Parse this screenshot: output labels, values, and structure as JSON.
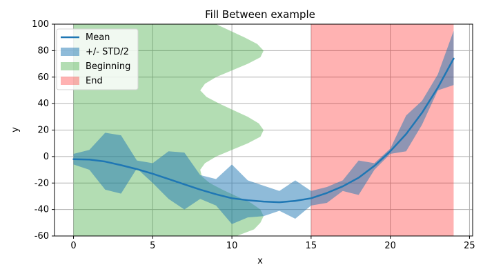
{
  "chart_data": {
    "type": "line",
    "title": "Fill Between example",
    "xlabel": "x",
    "ylabel": "y",
    "xlim": [
      -1.2,
      25.2
    ],
    "ylim": [
      -60,
      100
    ],
    "xticks": [
      0,
      5,
      10,
      15,
      20,
      25
    ],
    "yticks": [
      -60,
      -40,
      -20,
      0,
      20,
      40,
      60,
      80,
      100
    ],
    "grid": true,
    "legend_position": "upper-left",
    "series": [
      {
        "name": "Mean",
        "kind": "line",
        "color": "#1f77b4",
        "x": [
          0,
          1,
          2,
          3,
          4,
          5,
          6,
          7,
          8,
          9,
          10,
          11,
          12,
          13,
          14,
          15,
          16,
          17,
          18,
          19,
          20,
          21,
          22,
          23,
          24
        ],
        "y": [
          -2,
          -2.3,
          -3.8,
          -6.5,
          -9.5,
          -13,
          -17,
          -21,
          -25,
          -28.5,
          -31.5,
          -33,
          -34,
          -34.5,
          -33.5,
          -31.5,
          -27.5,
          -22.5,
          -16,
          -7,
          4,
          17,
          33,
          52,
          74
        ]
      },
      {
        "name": "+/- STD/2",
        "kind": "band",
        "color": "#1f77b4",
        "x": [
          0,
          1,
          2,
          3,
          4,
          5,
          6,
          7,
          8,
          9,
          10,
          11,
          12,
          13,
          14,
          15,
          16,
          17,
          18,
          19,
          20,
          21,
          22,
          23,
          24
        ],
        "upper": [
          2,
          5,
          18,
          16,
          -3,
          -5,
          4,
          3,
          -14,
          -17,
          -6,
          -18,
          -22,
          -26,
          -18,
          -26,
          -23,
          -18,
          -3,
          -5,
          6,
          31,
          42,
          62,
          95
        ],
        "lower": [
          -6,
          -10,
          -25,
          -28,
          -9,
          -20,
          -32,
          -40,
          -32,
          -37,
          -51,
          -46,
          -45,
          -41,
          -47,
          -37,
          -35,
          -26,
          -29,
          -10,
          2,
          4,
          24,
          50,
          54
        ]
      },
      {
        "name": "Beginning",
        "kind": "vertical-band",
        "color": "#2ca02c",
        "y": [
          -60,
          -55,
          -50,
          -45,
          -40,
          -35,
          -30,
          -25,
          -20,
          -15,
          -10,
          -5,
          0,
          5,
          10,
          15,
          20,
          25,
          30,
          35,
          40,
          45,
          50,
          55,
          60,
          65,
          70,
          75,
          80,
          85,
          90,
          95,
          100
        ],
        "x_start": [
          0,
          0,
          0,
          0,
          0,
          0,
          0,
          0,
          0,
          0,
          0,
          0,
          0,
          0,
          0,
          0,
          0,
          0,
          0,
          0,
          0,
          0,
          0,
          0,
          0,
          0,
          0,
          0,
          0,
          0,
          0,
          0,
          0
        ],
        "x_end": [
          10.3,
          11.4,
          11.8,
          12.0,
          11.8,
          11.2,
          10.3,
          9.4,
          8.6,
          8.1,
          8.0,
          8.3,
          9.0,
          10.0,
          11.0,
          11.8,
          12.0,
          11.7,
          11.0,
          10.1,
          9.2,
          8.4,
          8.0,
          8.3,
          9.0,
          10.0,
          11.0,
          11.8,
          12.0,
          11.6,
          10.8,
          9.9,
          9.0
        ]
      },
      {
        "name": "End",
        "kind": "span",
        "color": "#ff0000",
        "x": [
          15,
          24
        ]
      }
    ],
    "legend": [
      {
        "label": "Mean",
        "type": "line",
        "color": "#1f77b4"
      },
      {
        "label": "+/- STD/2",
        "type": "patch",
        "color": "#1f77b4"
      },
      {
        "label": "Beginning",
        "type": "patch",
        "color": "#2ca02c"
      },
      {
        "label": "End",
        "type": "patch",
        "color": "#ff0000"
      }
    ],
    "colors": {
      "mean": "#1f77b4",
      "std_band": "#1f77b4",
      "beginning": "#2ca02c",
      "end": "#ff0000",
      "grid": "#b0b0b0"
    }
  }
}
